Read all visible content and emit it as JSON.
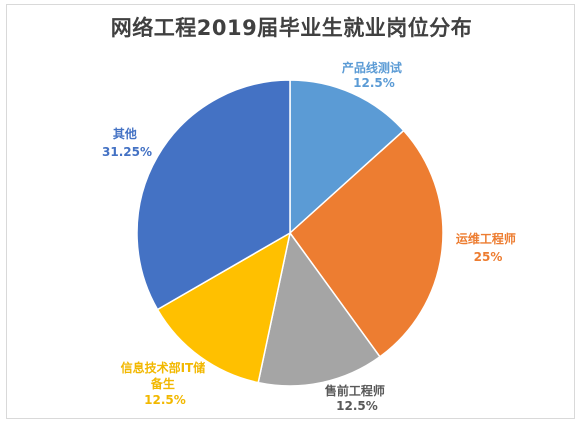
{
  "chart_data": {
    "type": "pie",
    "title": "网络工程2019届毕业生就业岗位分布",
    "slices": [
      {
        "label": "产品线测试",
        "value": 12.5,
        "value_label": "12.5%",
        "color": "#5B9BD5"
      },
      {
        "label": "运维工程师",
        "value": 25,
        "value_label": "25%",
        "color": "#ED7D31"
      },
      {
        "label": "售前工程师",
        "value": 12.5,
        "value_label": "12.5%",
        "color": "#A5A5A5"
      },
      {
        "label": "信息技术部IT储备生",
        "value": 12.5,
        "value_label": "12.5%",
        "color": "#FFC000"
      },
      {
        "label": "其他",
        "value": 31.25,
        "value_label": "31.25%",
        "color": "#4472C4"
      }
    ]
  }
}
